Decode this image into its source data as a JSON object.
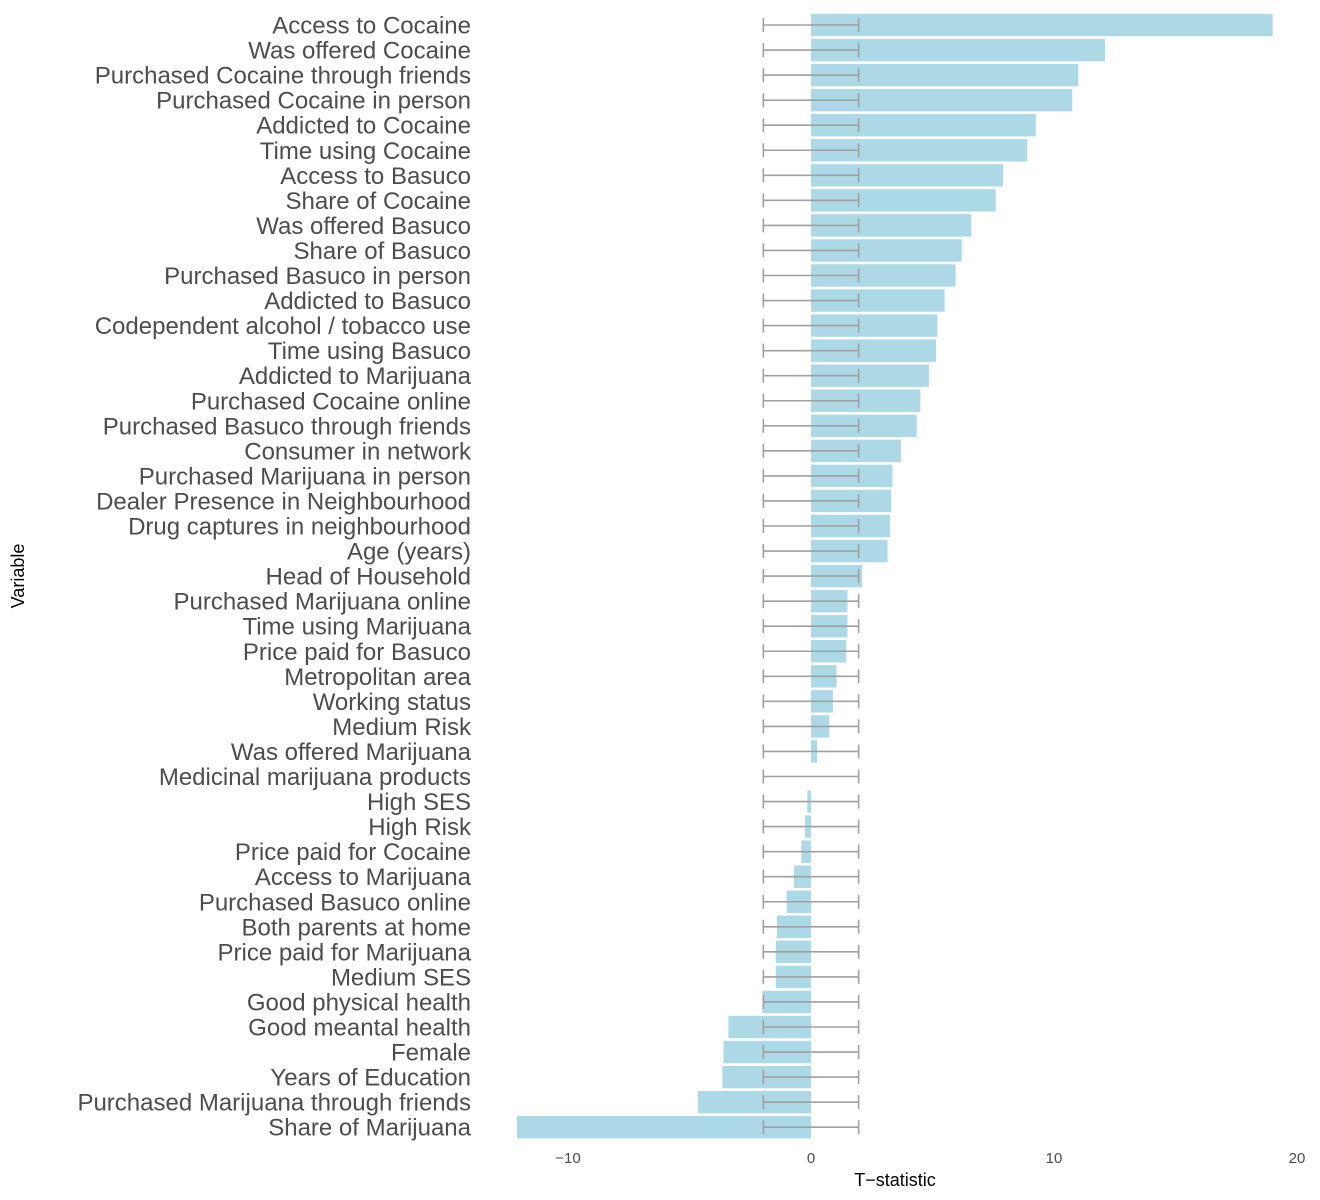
{
  "chart_data": {
    "type": "bar",
    "orientation": "horizontal",
    "xlabel": "T−statistic",
    "ylabel": "Variable",
    "xlim": [
      -12.5,
      20
    ],
    "x_ticks": [
      -10,
      0,
      10,
      20
    ],
    "x_tick_labels": [
      "−10",
      "0",
      "10",
      "20"
    ],
    "grid": false,
    "bar_color": "#add8e6",
    "errorbar_color": "#a0a0a0",
    "errorbar": {
      "lower": -1.96,
      "upper": 1.96
    },
    "categories": [
      "Access to Cocaine",
      "Was offered Cocaine",
      "Purchased Cocaine through friends",
      "Purchased Cocaine in person",
      "Addicted to Cocaine",
      "Time using Cocaine",
      "Access to Basuco",
      "Share of Cocaine",
      "Was offered Basuco",
      "Share of Basuco",
      "Purchased Basuco in person",
      "Addicted to Basuco",
      "Codependent alcohol / tobacco use",
      "Time using Basuco",
      "Addicted to Marijuana",
      "Purchased Cocaine online",
      "Purchased Basuco through friends",
      "Consumer in network",
      "Purchased Marijuana in person",
      "Dealer Presence in Neighbourhood",
      "Drug captures in neighbourhood",
      "Age (years)",
      "Head of Household",
      "Purchased Marijuana online",
      "Time using Marijuana",
      "Price paid for Basuco",
      "Metropolitan area",
      "Working status",
      "Medium Risk",
      "Was offered Marijuana",
      "Medicinal marijuana products",
      "High SES",
      "High Risk",
      "Price paid for Cocaine",
      "Access to Marijuana",
      "Purchased Basuco online",
      "Both parents at home",
      "Price paid for Marijuana",
      "Medium SES",
      "Good physical health",
      "Good meantal health",
      "Female",
      "Years of Education",
      "Purchased Marijuana through friends",
      "Share of Marijuana"
    ],
    "values": [
      19.0,
      12.1,
      11.0,
      10.75,
      9.25,
      8.9,
      7.9,
      7.6,
      6.6,
      6.2,
      5.95,
      5.5,
      5.2,
      5.15,
      4.85,
      4.5,
      4.35,
      3.7,
      3.35,
      3.3,
      3.25,
      3.15,
      2.1,
      1.5,
      1.5,
      1.45,
      1.05,
      0.9,
      0.75,
      0.25,
      0.0,
      -0.15,
      -0.25,
      -0.4,
      -0.7,
      -1.0,
      -1.4,
      -1.45,
      -1.45,
      -2.0,
      -3.4,
      -3.6,
      -3.65,
      -4.65,
      -12.1
    ]
  }
}
